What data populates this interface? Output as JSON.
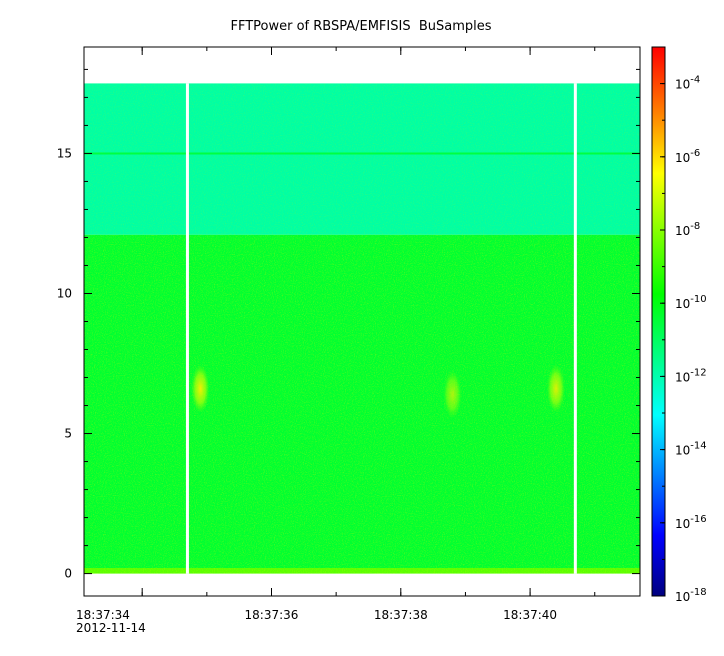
{
  "chart_data": {
    "type": "heatmap",
    "title": "FFTPower of RBSPA/EMFISIS  BuSamples",
    "xlabel": "",
    "ylabel": "",
    "x_range": [
      "18:37:33.1",
      "18:37:41.7"
    ],
    "ylim": [
      -0.8,
      18.8
    ],
    "y_ticks": [
      "0",
      "5",
      "10",
      "15"
    ],
    "x_ticks": [
      "18:37:34",
      "18:37:36",
      "18:37:38",
      "18:37:40"
    ],
    "x_date_label": "2012-11-14",
    "colorbar": {
      "scale": "log",
      "range": [
        "1e-18",
        "1e-3"
      ],
      "tick_exponents": [
        "-4",
        "-6",
        "-8",
        "-10",
        "-12",
        "-14",
        "-16",
        "-18"
      ],
      "colors": [
        "#00007f",
        "#0000ff",
        "#0080ff",
        "#00ffff",
        "#00ff80",
        "#00ff00",
        "#80ff00",
        "#ffff00",
        "#ff8000",
        "#ff0000"
      ]
    },
    "bands": [
      {
        "freq_range": [
          0,
          0.2
        ],
        "log10_power": -8.5
      },
      {
        "freq_range": [
          0.2,
          12.1
        ],
        "log10_power": -10.3
      },
      {
        "freq_range": [
          12.1,
          17.5
        ],
        "log10_power": -11.8
      }
    ],
    "line_feature": {
      "freq": 15.0,
      "log10_power": -10.5
    },
    "gaps_time": [
      "18:37:34.7",
      "18:37:40.7"
    ],
    "bursts": [
      {
        "time": "18:37:34.9",
        "freq": 6.6,
        "log10_power": -9.0
      },
      {
        "time": "18:37:38.8",
        "freq": 6.4,
        "log10_power": -9.6
      },
      {
        "time": "18:37:40.4",
        "freq": 6.6,
        "log10_power": -9.2
      }
    ]
  }
}
